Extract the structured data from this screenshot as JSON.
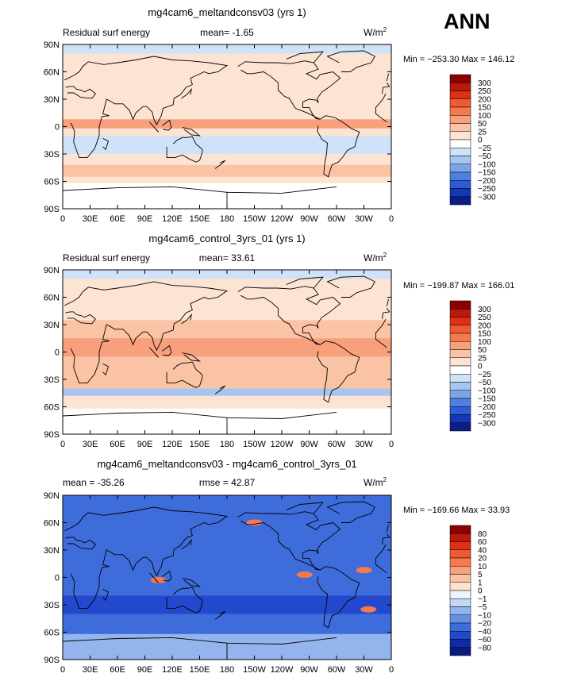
{
  "season": "ANN",
  "lat_ticks": [
    "90N",
    "60N",
    "30N",
    "0",
    "30S",
    "60S",
    "90S"
  ],
  "lon_ticks": [
    "0",
    "30E",
    "60E",
    "90E",
    "120E",
    "150E",
    "180",
    "150W",
    "120W",
    "90W",
    "60W",
    "30W",
    "0"
  ],
  "chart_data": [
    {
      "type": "heatmap",
      "title": "mg4cam6_meltandconsv03 (yrs 1)",
      "left_label": "Residual surf energy",
      "mean_label": "mean=",
      "mean_value": "-1.65",
      "units": "W/m",
      "units_exp": "2",
      "stats": "Min = −253.30 Max = 146.12",
      "min": -253.3,
      "max": 146.12,
      "levels": [
        "300",
        "250",
        "200",
        "150",
        "100",
        "50",
        "25",
        "0",
        "−25",
        "−50",
        "−100",
        "−150",
        "−200",
        "−250",
        "−300"
      ],
      "colors": [
        "#8b0000",
        "#bb1a0a",
        "#dd3014",
        "#ef5a30",
        "#f47a4e",
        "#f8a07c",
        "#fbc3a6",
        "#fde4d2",
        "#ffffff",
        "#cfe2f7",
        "#a6c6f0",
        "#7aa6e6",
        "#4f80df",
        "#2e5bd6",
        "#1537b6",
        "#0a1e86"
      ],
      "base_level": "#fde4d2"
    },
    {
      "type": "heatmap",
      "title": "mg4cam6_control_3yrs_01 (yrs 1)",
      "left_label": "Residual surf energy",
      "mean_label": "mean=",
      "mean_value": "33.61",
      "units": "W/m",
      "units_exp": "2",
      "stats": "Min = −199.87 Max = 166.01",
      "min": -199.87,
      "max": 166.01,
      "levels": [
        "300",
        "250",
        "200",
        "150",
        "100",
        "50",
        "25",
        "0",
        "−25",
        "−50",
        "−100",
        "−150",
        "−200",
        "−250",
        "−300"
      ],
      "colors": [
        "#8b0000",
        "#bb1a0a",
        "#dd3014",
        "#ef5a30",
        "#f47a4e",
        "#f8a07c",
        "#fbc3a6",
        "#fde4d2",
        "#ffffff",
        "#cfe2f7",
        "#a6c6f0",
        "#7aa6e6",
        "#4f80df",
        "#2e5bd6",
        "#1537b6",
        "#0a1e86"
      ],
      "base_level": "#fde4d2"
    },
    {
      "type": "heatmap",
      "title": "mg4cam6_meltandconsv03 - mg4cam6_control_3yrs_01",
      "left_label": "mean = -35.26",
      "mean_label": "rmse =",
      "mean_value": "42.87",
      "units": "W/m",
      "units_exp": "2",
      "stats": "Min = −169.66 Max =   33.93",
      "min": -169.66,
      "max": 33.93,
      "levels": [
        "80",
        "60",
        "40",
        "20",
        "10",
        "5",
        "1",
        "0",
        "−1",
        "−5",
        "−10",
        "−20",
        "−40",
        "−60",
        "−80"
      ],
      "colors": [
        "#8b0000",
        "#bb1a0a",
        "#dd3014",
        "#ef5a30",
        "#f47a4e",
        "#f8a07c",
        "#fbc3a6",
        "#fde4d2",
        "#eef4fb",
        "#c2d8f3",
        "#93b4ec",
        "#6690e3",
        "#3f6cdb",
        "#2249cd",
        "#0e2ca6",
        "#091b7c"
      ],
      "base_level": "#3f6cdb"
    }
  ]
}
